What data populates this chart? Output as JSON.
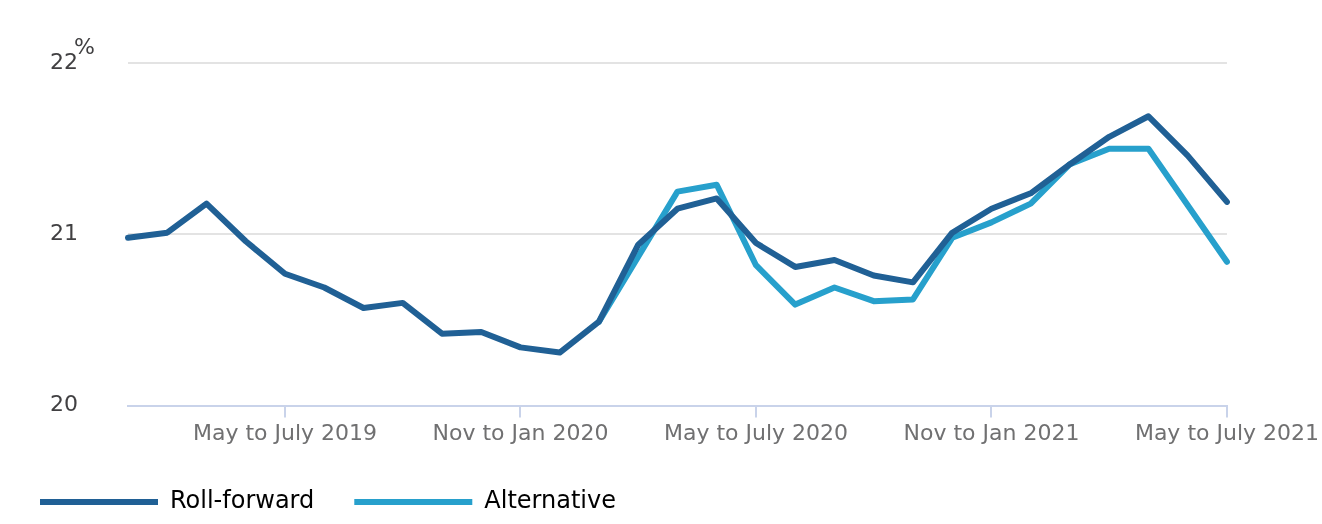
{
  "chart_data": {
    "type": "line",
    "ylabel": "%",
    "categories": [
      null,
      null,
      null,
      null,
      "May to July 2019",
      null,
      null,
      null,
      null,
      null,
      "Nov to Jan 2020",
      null,
      null,
      null,
      null,
      null,
      "May to July 2020",
      null,
      null,
      null,
      null,
      null,
      "Nov to Jan 2021",
      null,
      null,
      null,
      null,
      null,
      "May to July 2021"
    ],
    "series": [
      {
        "name": "Roll-forward",
        "color": "#206095",
        "values": [
          20.98,
          21.01,
          21.18,
          20.96,
          20.77,
          20.69,
          20.57,
          20.6,
          20.42,
          20.43,
          20.34,
          20.31,
          20.49,
          20.94,
          21.15,
          21.21,
          20.95,
          20.81,
          20.85,
          20.76,
          20.72,
          21.01,
          21.15,
          21.24,
          21.41,
          21.57,
          21.69,
          21.46,
          21.19
        ]
      },
      {
        "name": "Alternative",
        "color": "#27a0cc",
        "values": [
          null,
          null,
          null,
          null,
          null,
          null,
          null,
          null,
          null,
          null,
          null,
          null,
          20.49,
          20.87,
          21.25,
          21.29,
          20.82,
          20.59,
          20.69,
          20.61,
          20.62,
          20.98,
          21.07,
          21.18,
          21.41,
          21.5,
          21.5,
          21.17,
          20.84
        ]
      }
    ],
    "ylim": [
      20,
      22
    ],
    "yticks": [
      20,
      21,
      22
    ],
    "grid": "y",
    "legend": "bottom left",
    "marker": "none",
    "line_style": "solid"
  }
}
